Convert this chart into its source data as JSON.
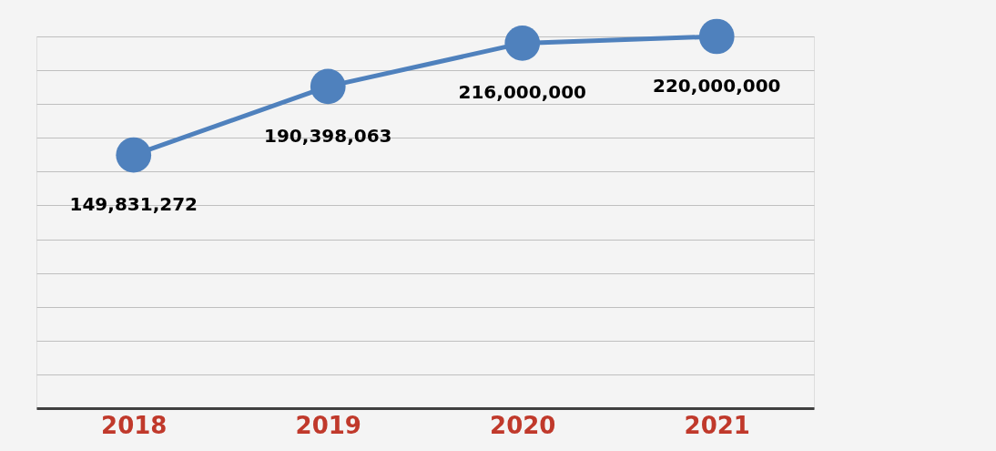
{
  "chart_data": {
    "type": "line",
    "categories": [
      "2018",
      "2019",
      "2020",
      "2021"
    ],
    "series": [
      {
        "color": "#4f81bd",
        "values": [
          149831272,
          190398063,
          216000000,
          220000000
        ],
        "value_labels": [
          "149,831,272",
          "190,398,063",
          "216,000,000",
          "220,000,000"
        ]
      }
    ],
    "tick_labels": "x",
    "grid": "y",
    "marker": "circle",
    "line_style": "solid"
  }
}
